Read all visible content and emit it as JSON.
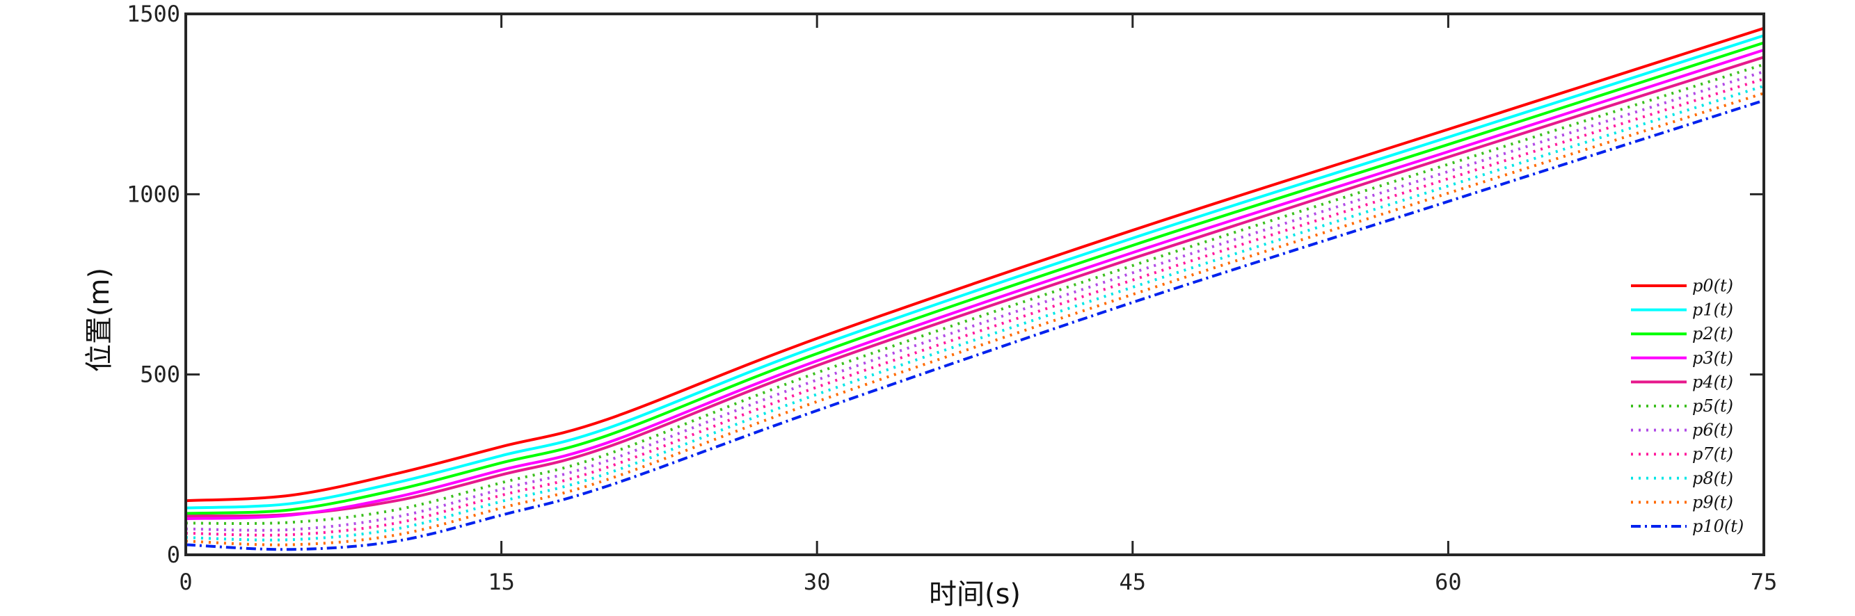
{
  "chart_data": {
    "type": "line",
    "title": "",
    "xlabel": "时间(s)",
    "ylabel": "位置(m)",
    "xlim": [
      0,
      75
    ],
    "ylim": [
      0,
      1500
    ],
    "xticks": [
      0,
      15,
      30,
      45,
      60,
      75
    ],
    "yticks": [
      0,
      500,
      1000,
      1500
    ],
    "xtick_labels": [
      "0",
      "15",
      "30",
      "45",
      "60",
      "75"
    ],
    "ytick_labels": [
      "0",
      "500",
      "1000",
      "1500"
    ],
    "grid": false,
    "legend_position": "bottom-right",
    "x": [
      0,
      5,
      10,
      15,
      20,
      30,
      45,
      60,
      75
    ],
    "series": [
      {
        "name": "p0(t)",
        "color": "#ff0000",
        "dash": "solid",
        "values": [
          150,
          165,
          225,
          300,
          375,
          600,
          900,
          1180,
          1460
        ]
      },
      {
        "name": "p1(t)",
        "color": "#00ffff",
        "dash": "solid",
        "values": [
          130,
          142,
          200,
          275,
          350,
          578,
          878,
          1158,
          1440
        ]
      },
      {
        "name": "p2(t)",
        "color": "#00ff00",
        "dash": "solid",
        "values": [
          115,
          125,
          180,
          255,
          330,
          558,
          858,
          1138,
          1420
        ]
      },
      {
        "name": "p3(t)",
        "color": "#ff00ff",
        "dash": "solid",
        "values": [
          100,
          110,
          160,
          235,
          310,
          538,
          838,
          1118,
          1400
        ]
      },
      {
        "name": "p4(t)",
        "color": "#e6198c",
        "dash": "solid",
        "values": [
          108,
          112,
          150,
          222,
          298,
          525,
          822,
          1103,
          1380
        ]
      },
      {
        "name": "p5(t)",
        "color": "#3cbf1e",
        "dash": "dotted",
        "values": [
          88,
          90,
          125,
          200,
          278,
          505,
          802,
          1083,
          1360
        ]
      },
      {
        "name": "p6(t)",
        "color": "#b14be6",
        "dash": "dotted",
        "values": [
          72,
          70,
          105,
          182,
          260,
          485,
          782,
          1063,
          1340
        ]
      },
      {
        "name": "p7(t)",
        "color": "#ff1a9c",
        "dash": "dotted",
        "values": [
          60,
          56,
          88,
          165,
          242,
          465,
          762,
          1043,
          1320
        ]
      },
      {
        "name": "p8(t)",
        "color": "#00e6e6",
        "dash": "dotted",
        "values": [
          48,
          42,
          72,
          148,
          225,
          445,
          742,
          1023,
          1300
        ]
      },
      {
        "name": "p9(t)",
        "color": "#ff6a00",
        "dash": "dotted",
        "values": [
          38,
          28,
          55,
          130,
          208,
          425,
          722,
          1003,
          1280
        ]
      },
      {
        "name": "p10(t)",
        "color": "#0022ee",
        "dash": "dashdot",
        "values": [
          28,
          15,
          38,
          110,
          190,
          400,
          700,
          980,
          1260
        ]
      }
    ]
  }
}
